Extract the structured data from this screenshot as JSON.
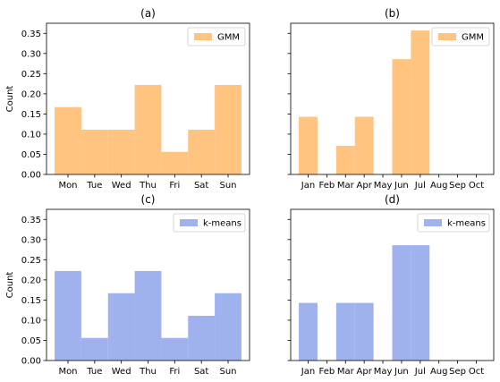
{
  "chart_data": [
    {
      "id": "a",
      "type": "bar",
      "title": "(a)",
      "ylabel": "Count",
      "categories": [
        "Mon",
        "Tue",
        "Wed",
        "Thu",
        "Fri",
        "Sat",
        "Sun"
      ],
      "series": [
        {
          "name": "GMM",
          "values": [
            0.167,
            0.111,
            0.111,
            0.222,
            0.056,
            0.111,
            0.222
          ],
          "color": "#ffc480"
        }
      ],
      "ylim": [
        0,
        0.375
      ],
      "yticks": [
        "0.00",
        "0.05",
        "0.10",
        "0.15",
        "0.20",
        "0.25",
        "0.30",
        "0.35"
      ],
      "legend": "top-right",
      "grid": false
    },
    {
      "id": "b",
      "type": "bar",
      "title": "(b)",
      "ylabel": "",
      "categories": [
        "Jan",
        "Feb",
        "Mar",
        "Apr",
        "May",
        "Jun",
        "Jul",
        "Aug",
        "Sep",
        "Oct"
      ],
      "series": [
        {
          "name": "GMM",
          "values": [
            0.143,
            0,
            0.071,
            0.143,
            0,
            0.286,
            0.357,
            0,
            0,
            0
          ],
          "color": "#ffc480"
        }
      ],
      "ylim": [
        0,
        0.375
      ],
      "yticks": [],
      "legend": "top-right",
      "grid": false
    },
    {
      "id": "c",
      "type": "bar",
      "title": "(c)",
      "ylabel": "Count",
      "categories": [
        "Mon",
        "Tue",
        "Wed",
        "Thu",
        "Fri",
        "Sat",
        "Sun"
      ],
      "series": [
        {
          "name": "k-means",
          "values": [
            0.222,
            0.056,
            0.167,
            0.222,
            0.056,
            0.111,
            0.167
          ],
          "color": "#a0b2ee"
        }
      ],
      "ylim": [
        0,
        0.375
      ],
      "yticks": [
        "0.00",
        "0.05",
        "0.10",
        "0.15",
        "0.20",
        "0.25",
        "0.30",
        "0.35"
      ],
      "legend": "top-right",
      "grid": false
    },
    {
      "id": "d",
      "type": "bar",
      "title": "(d)",
      "ylabel": "",
      "categories": [
        "Jan",
        "Feb",
        "Mar",
        "Apr",
        "May",
        "Jun",
        "Jul",
        "Aug",
        "Sep",
        "Oct"
      ],
      "series": [
        {
          "name": "k-means",
          "values": [
            0.143,
            0,
            0.143,
            0.143,
            0,
            0.286,
            0.286,
            0,
            0,
            0
          ],
          "color": "#a0b2ee"
        }
      ],
      "ylim": [
        0,
        0.375
      ],
      "yticks": [],
      "legend": "top-right",
      "grid": false
    }
  ]
}
